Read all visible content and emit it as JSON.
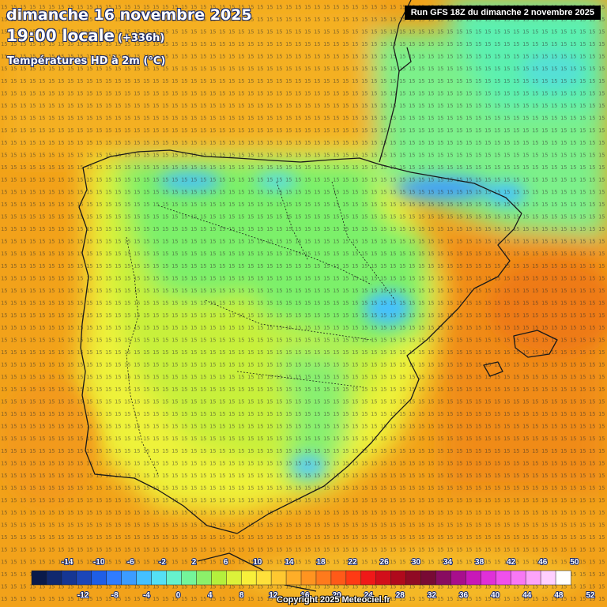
{
  "header": {
    "date": "dimanche 16 novembre 2025",
    "time": "19:00 locale",
    "offset": "(+336h)",
    "variable": "Températures HD à 2m (°C)",
    "run": "Run GFS 18Z du dimanche 2 novembre 2025"
  },
  "footer": {
    "copyright": "Copyright 2025 Meteociel.fr"
  },
  "legend": {
    "values_top": [
      "-14",
      "-10",
      "-6",
      "-2",
      "2",
      "6",
      "10",
      "14",
      "18",
      "22",
      "26",
      "30",
      "34",
      "38",
      "42",
      "46",
      "50"
    ],
    "values_bottom": [
      "-12",
      "-8",
      "-4",
      "0",
      "4",
      "8",
      "12",
      "16",
      "20",
      "24",
      "28",
      "32",
      "36",
      "40",
      "44",
      "48",
      "52"
    ],
    "colors": [
      "#0a1a4a",
      "#10286e",
      "#163693",
      "#1c46b8",
      "#1f5ee6",
      "#2f7cff",
      "#3c9cff",
      "#44c0ff",
      "#55e0f5",
      "#66f2cc",
      "#74f59a",
      "#8cf06a",
      "#b4f03c",
      "#dcf23a",
      "#f8f03a",
      "#ffe13a",
      "#ffc830",
      "#ffae28",
      "#ff9420",
      "#ff7a1c",
      "#ff5a18",
      "#ff3a14",
      "#f01818",
      "#d20e1a",
      "#b00a1c",
      "#900a24",
      "#780a34",
      "#880c60",
      "#a80e8c",
      "#c818b8",
      "#e030d8",
      "#f050ec",
      "#f878f4",
      "#fca4fa",
      "#ffd0ff",
      "#ffffff"
    ]
  },
  "map_data": {
    "background": "#f2a21a",
    "border_color": "#1a1a1a"
  }
}
